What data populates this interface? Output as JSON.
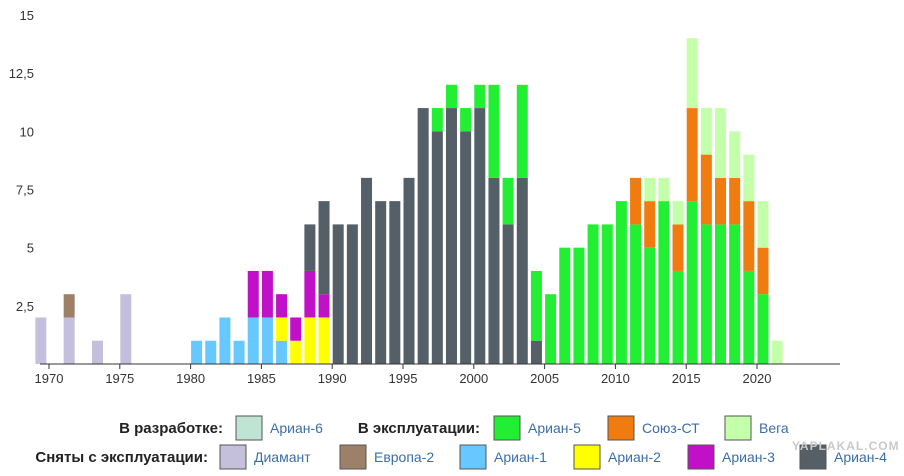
{
  "chart_data": {
    "type": "bar",
    "stacked": true,
    "x": [
      1968,
      1969,
      1970,
      1971,
      1972,
      1973,
      1974,
      1975,
      1976,
      1977,
      1978,
      1979,
      1980,
      1981,
      1982,
      1983,
      1984,
      1985,
      1986,
      1987,
      1988,
      1989,
      1990,
      1991,
      1992,
      1993,
      1994,
      1995,
      1996,
      1997,
      1998,
      1999,
      2000,
      2001,
      2002,
      2003,
      2004,
      2005,
      2006,
      2007,
      2008,
      2009,
      2010,
      2011,
      2012,
      2013,
      2014,
      2015,
      2016,
      2017,
      2018,
      2019,
      2020,
      2021,
      2022
    ],
    "series": [
      {
        "name": "Диамант",
        "color": "#c4c0dc",
        "values": [
          0,
          2,
          0,
          2,
          0,
          1,
          0,
          3,
          0,
          0,
          0,
          0,
          0,
          0,
          0,
          0,
          0,
          0,
          0,
          0,
          0,
          0,
          0,
          0,
          0,
          0,
          0,
          0,
          0,
          0,
          0,
          0,
          0,
          0,
          0,
          0,
          0,
          0,
          0,
          0,
          0,
          0,
          0,
          0,
          0,
          0,
          0,
          0,
          0,
          0,
          0,
          0,
          0,
          0,
          0
        ]
      },
      {
        "name": "Европа-2",
        "color": "#9c8068",
        "values": [
          0,
          0,
          0,
          1,
          0,
          0,
          0,
          0,
          0,
          0,
          0,
          0,
          0,
          0,
          0,
          0,
          0,
          0,
          0,
          0,
          0,
          0,
          0,
          0,
          0,
          0,
          0,
          0,
          0,
          0,
          0,
          0,
          0,
          0,
          0,
          0,
          0,
          0,
          0,
          0,
          0,
          0,
          0,
          0,
          0,
          0,
          0,
          0,
          0,
          0,
          0,
          0,
          0,
          0,
          0
        ]
      },
      {
        "name": "Ариан-1",
        "color": "#66c8ff",
        "values": [
          0,
          0,
          0,
          0,
          0,
          0,
          0,
          0,
          0,
          0,
          0,
          0,
          1,
          1,
          2,
          1,
          2,
          2,
          1,
          0,
          0,
          0,
          0,
          0,
          0,
          0,
          0,
          0,
          0,
          0,
          0,
          0,
          0,
          0,
          0,
          0,
          0,
          0,
          0,
          0,
          0,
          0,
          0,
          0,
          0,
          0,
          0,
          0,
          0,
          0,
          0,
          0,
          0,
          0,
          0
        ]
      },
      {
        "name": "Ариан-2",
        "color": "#ffff00",
        "values": [
          0,
          0,
          0,
          0,
          0,
          0,
          0,
          0,
          0,
          0,
          0,
          0,
          0,
          0,
          0,
          0,
          0,
          0,
          1,
          1,
          2,
          2,
          0,
          0,
          0,
          0,
          0,
          0,
          0,
          0,
          0,
          0,
          0,
          0,
          0,
          0,
          0,
          0,
          0,
          0,
          0,
          0,
          0,
          0,
          0,
          0,
          0,
          0,
          0,
          0,
          0,
          0,
          0,
          0,
          0
        ]
      },
      {
        "name": "Ариан-3",
        "color": "#c010c8",
        "values": [
          0,
          0,
          0,
          0,
          0,
          0,
          0,
          0,
          0,
          0,
          0,
          0,
          0,
          0,
          0,
          0,
          2,
          2,
          1,
          1,
          2,
          1,
          0,
          0,
          0,
          0,
          0,
          0,
          0,
          0,
          0,
          0,
          0,
          0,
          0,
          0,
          0,
          0,
          0,
          0,
          0,
          0,
          0,
          0,
          0,
          0,
          0,
          0,
          0,
          0,
          0,
          0,
          0,
          0,
          0
        ]
      },
      {
        "name": "Ариан-4",
        "color": "#555f68",
        "values": [
          0,
          0,
          0,
          0,
          0,
          0,
          0,
          0,
          0,
          0,
          0,
          0,
          0,
          0,
          0,
          0,
          0,
          0,
          0,
          0,
          2,
          4,
          6,
          6,
          8,
          7,
          7,
          8,
          11,
          10,
          11,
          10,
          11,
          8,
          6,
          8,
          1,
          0,
          0,
          0,
          0,
          0,
          0,
          0,
          0,
          0,
          0,
          0,
          0,
          0,
          0,
          0,
          0,
          0,
          0
        ]
      },
      {
        "name": "Ариан-5",
        "color": "#22ee33",
        "values": [
          0,
          0,
          0,
          0,
          0,
          0,
          0,
          0,
          0,
          0,
          0,
          0,
          0,
          0,
          0,
          0,
          0,
          0,
          0,
          0,
          0,
          0,
          0,
          0,
          0,
          0,
          0,
          0,
          0,
          1,
          1,
          1,
          1,
          4,
          2,
          4,
          3,
          3,
          5,
          5,
          6,
          6,
          7,
          6,
          5,
          7,
          4,
          7,
          6,
          6,
          6,
          4,
          3,
          0,
          0
        ]
      },
      {
        "name": "Союз-СТ",
        "color": "#f07c10",
        "values": [
          0,
          0,
          0,
          0,
          0,
          0,
          0,
          0,
          0,
          0,
          0,
          0,
          0,
          0,
          0,
          0,
          0,
          0,
          0,
          0,
          0,
          0,
          0,
          0,
          0,
          0,
          0,
          0,
          0,
          0,
          0,
          0,
          0,
          0,
          0,
          0,
          0,
          0,
          0,
          0,
          0,
          0,
          0,
          2,
          2,
          0,
          2,
          4,
          3,
          2,
          2,
          3,
          2,
          0,
          0
        ]
      },
      {
        "name": "Вега",
        "color": "#c4ffaa",
        "values": [
          0,
          0,
          0,
          0,
          0,
          0,
          0,
          0,
          0,
          0,
          0,
          0,
          0,
          0,
          0,
          0,
          0,
          0,
          0,
          0,
          0,
          0,
          0,
          0,
          0,
          0,
          0,
          0,
          0,
          0,
          0,
          0,
          0,
          0,
          0,
          0,
          0,
          0,
          0,
          0,
          0,
          0,
          0,
          0,
          1,
          1,
          1,
          3,
          2,
          3,
          2,
          2,
          2,
          1,
          0
        ]
      },
      {
        "name": "Ариан-6",
        "color": "#c0e4d4",
        "values": [
          0,
          0,
          0,
          0,
          0,
          0,
          0,
          0,
          0,
          0,
          0,
          0,
          0,
          0,
          0,
          0,
          0,
          0,
          0,
          0,
          0,
          0,
          0,
          0,
          0,
          0,
          0,
          0,
          0,
          0,
          0,
          0,
          0,
          0,
          0,
          0,
          0,
          0,
          0,
          0,
          0,
          0,
          0,
          0,
          0,
          0,
          0,
          0,
          0,
          0,
          0,
          0,
          0,
          0,
          0
        ]
      }
    ],
    "xticks": [
      1970,
      1975,
      1980,
      1985,
      1990,
      1995,
      2000,
      2005,
      2010,
      2015,
      2020
    ],
    "xtick_labels": [
      "1970",
      "1975",
      "1980",
      "1985",
      "1990",
      "1995",
      "2000",
      "2005",
      "2010",
      "2015",
      "2020"
    ],
    "yticks": [
      2.5,
      5,
      7.5,
      10,
      12.5,
      15
    ],
    "ytick_labels": [
      "2,5",
      "5",
      "7,5",
      "10",
      "12,5",
      "15"
    ],
    "ylim": [
      0,
      15
    ],
    "grid": false,
    "legend_placement": "bottom",
    "legend": {
      "groups": [
        {
          "heading": "В разработке:",
          "items": [
            "Ариан-6"
          ]
        },
        {
          "heading": "В эксплуатации:",
          "items": [
            "Ариан-5",
            "Союз-СТ",
            "Вега"
          ]
        },
        {
          "heading": "Сняты с эксплуатации:",
          "items": [
            "Диамант",
            "Европа-2",
            "Ариан-1",
            "Ариан-2",
            "Ариан-3",
            "Ариан-4"
          ]
        }
      ]
    }
  },
  "watermark": "YAPLAKAL.COM"
}
